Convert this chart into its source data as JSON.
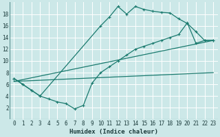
{
  "xlabel": "Humidex (Indice chaleur)",
  "bg_color": "#cce8e8",
  "line_color": "#1a7a6e",
  "grid_color": "#b0d8d8",
  "xlim": [
    -0.5,
    23.5
  ],
  "ylim": [
    0,
    20
  ],
  "xticks": [
    0,
    1,
    2,
    3,
    4,
    5,
    6,
    7,
    8,
    9,
    10,
    11,
    12,
    13,
    14,
    15,
    16,
    17,
    18,
    19,
    20,
    21,
    22,
    23
  ],
  "yticks": [
    2,
    4,
    6,
    8,
    10,
    12,
    14,
    16,
    18
  ],
  "upper_curve": {
    "x": [
      0,
      1,
      2,
      3,
      10,
      11,
      12,
      13,
      14,
      15,
      16,
      17,
      18,
      19,
      20,
      21,
      22,
      23
    ],
    "y": [
      7,
      6,
      5,
      4,
      16,
      17.5,
      19.3,
      18.0,
      19.3,
      18.8,
      18.5,
      18.3,
      18.2,
      17.2,
      16.4,
      15.0,
      13.5,
      13.5
    ]
  },
  "lower_curve": {
    "x": [
      0,
      1,
      2,
      3,
      4,
      5,
      6,
      7,
      8,
      9,
      10,
      11,
      12,
      13,
      14,
      15,
      16,
      17,
      18,
      19,
      20,
      21,
      22,
      23
    ],
    "y": [
      7,
      6,
      5,
      4,
      3.5,
      3.0,
      2.7,
      1.8,
      2.4,
      6.2,
      8.0,
      9.0,
      10.0,
      11.0,
      12.0,
      12.5,
      13.0,
      13.5,
      14.0,
      14.5,
      16.5,
      13.0,
      13.5,
      13.5
    ]
  },
  "straight_line1": {
    "x": [
      0,
      23
    ],
    "y": [
      6.5,
      13.5
    ]
  },
  "straight_line2": {
    "x": [
      0,
      23
    ],
    "y": [
      6.5,
      8.0
    ]
  }
}
